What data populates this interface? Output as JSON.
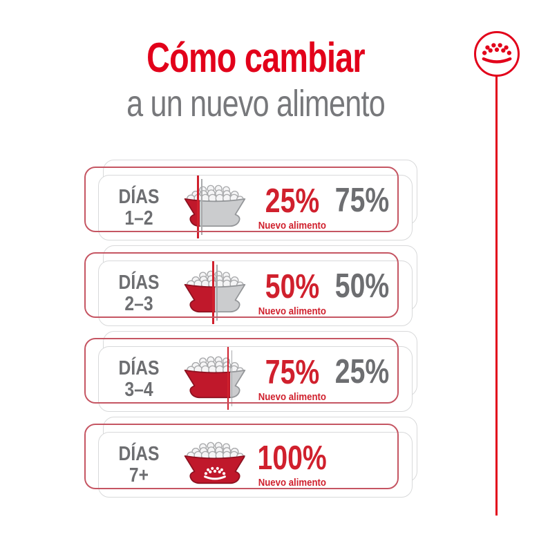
{
  "header": {
    "title": "Cómo cambiar",
    "subtitle": "a un nuevo alimento"
  },
  "brand": {
    "logo": "royal-canin-crown",
    "stem_line": "vertical-red-line"
  },
  "colors": {
    "title_red": "#e2001a",
    "number_red": "#d0202d",
    "text_gray": "#6d6e71",
    "subtitle_gray": "#77787b",
    "bowl_red": "#c0182b",
    "bowl_red_stroke": "#8e1120",
    "bowl_gray": "#cbccce",
    "bowl_gray_stroke": "#939598",
    "kibble_fill": "#f5f5f6",
    "kibble_stroke": "#a8a9ab",
    "card_border_red": "#c55562",
    "card_border_gray": "#d8d9da"
  },
  "rows": [
    {
      "days_label": "DÍAS",
      "days_range": "1–2",
      "new_pct": "25%",
      "new_value": 25,
      "new_caption": "Nuevo alimento",
      "old_pct": "75%",
      "divider": true,
      "crown": false
    },
    {
      "days_label": "DÍAS",
      "days_range": "2–3",
      "new_pct": "50%",
      "new_value": 50,
      "new_caption": "Nuevo alimento",
      "old_pct": "50%",
      "divider": true,
      "crown": false
    },
    {
      "days_label": "DÍAS",
      "days_range": "3–4",
      "new_pct": "75%",
      "new_value": 75,
      "new_caption": "Nuevo alimento",
      "old_pct": "25%",
      "divider": true,
      "crown": false
    },
    {
      "days_label": "DÍAS",
      "days_range": "7+",
      "new_pct": "100%",
      "new_value": 100,
      "new_caption": "Nuevo alimento",
      "old_pct": "",
      "divider": false,
      "crown": true
    }
  ]
}
